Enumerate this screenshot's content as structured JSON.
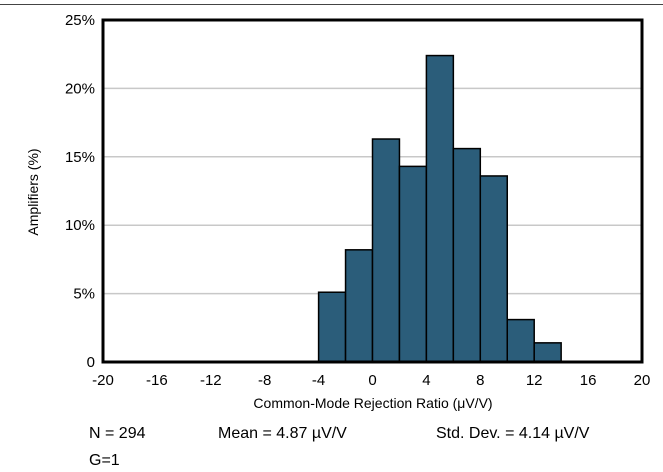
{
  "chart_data": {
    "type": "bar",
    "xlabel": "Common-Mode Rejection Ratio (μV/V)",
    "ylabel": "Amplifiers (%)",
    "xlim": [
      -20,
      20
    ],
    "ylim": [
      0,
      25
    ],
    "x_ticks": [
      "-20",
      "-16",
      "-12",
      "-8",
      "-4",
      "0",
      "4",
      "8",
      "12",
      "16",
      "20"
    ],
    "y_ticks": [
      "0",
      "5%",
      "10%",
      "15%",
      "20%",
      "25%"
    ],
    "bin_width": 2,
    "bins": [
      {
        "x0": -4,
        "x1": -2,
        "value": 5.1
      },
      {
        "x0": -2,
        "x1": 0,
        "value": 8.2
      },
      {
        "x0": 0,
        "x1": 2,
        "value": 16.3
      },
      {
        "x0": 2,
        "x1": 4,
        "value": 14.3
      },
      {
        "x0": 4,
        "x1": 6,
        "value": 22.4
      },
      {
        "x0": 6,
        "x1": 8,
        "value": 15.6
      },
      {
        "x0": 8,
        "x1": 10,
        "value": 13.6
      },
      {
        "x0": 10,
        "x1": 12,
        "value": 3.1
      },
      {
        "x0": 12,
        "x1": 14,
        "value": 1.4
      }
    ],
    "grid": "horizontal",
    "bar_color": "#2b5d7a",
    "bar_edge_color": "#000000"
  },
  "stats": {
    "n": "N = 294",
    "mean": "Mean = 4.87 µV/V",
    "std": "Std. Dev. = 4.14 µV/V",
    "gain": "G=1"
  }
}
